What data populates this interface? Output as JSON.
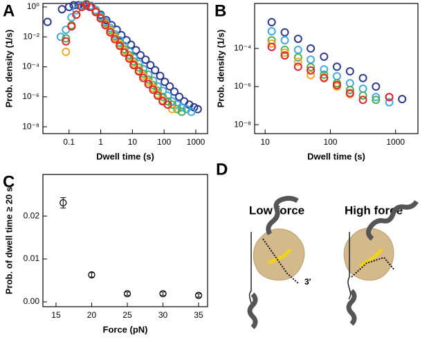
{
  "chart_data": [
    {
      "type": "scatter",
      "label": "A",
      "x_label": "Dwell time (s)",
      "y_label": "Prob. density (1/s)",
      "log_x": true,
      "log_y": true,
      "xlim": [
        0.015,
        2350
      ],
      "ylim": [
        3.5e-09,
        1.7
      ],
      "xticks": [
        0.1,
        1,
        10,
        100,
        1000
      ],
      "yticks": [
        {
          "value": 1e-08,
          "label": "10⁻⁸"
        },
        {
          "value": 1e-06,
          "label": "10⁻⁶"
        },
        {
          "value": 0.0001,
          "label": "10⁻⁴"
        },
        {
          "value": 0.01,
          "label": "10⁻²"
        },
        {
          "value": 1,
          "label": "10⁰"
        }
      ],
      "series": [
        {
          "color": "#2b3990",
          "x": [
            0.021,
            0.06,
            0.1,
            0.14,
            0.2,
            0.3,
            0.45,
            0.7,
            1,
            1.5,
            2.2,
            3.2,
            4.5,
            6.5,
            9,
            13,
            18,
            26,
            37,
            52,
            75,
            105,
            150,
            210,
            300,
            430,
            620,
            880,
            1150
          ],
          "values": [
            0.1,
            0.7,
            1,
            1.3,
            1.3,
            1.2,
            1,
            0.6,
            0.3,
            0.13,
            0.06,
            0.03,
            0.013,
            0.006,
            0.003,
            0.0013,
            0.0006,
            0.0003,
            0.00013,
            6e-05,
            2.5e-05,
            1e-05,
            5e-06,
            2.2e-06,
            1e-06,
            5e-07,
            3e-07,
            2e-07,
            1.5e-07
          ]
        },
        {
          "color": "#3fa9e0",
          "x": [
            0.055,
            0.08,
            0.12,
            0.17,
            0.25,
            0.35,
            0.5,
            0.7,
            1,
            1.4,
            2,
            2.8,
            4,
            5.6,
            8,
            11,
            16,
            22,
            32,
            45,
            63,
            90,
            130,
            180,
            260,
            360,
            510,
            720
          ],
          "values": [
            0.01,
            0.03,
            0.2,
            0.6,
            1.3,
            1.6,
            1.2,
            0.6,
            0.25,
            0.1,
            0.04,
            0.015,
            0.006,
            0.0025,
            0.001,
            0.0004,
            0.00016,
            7e-05,
            3e-05,
            1.2e-05,
            5e-06,
            2.5e-06,
            1.2e-06,
            5e-07,
            3e-07,
            2e-07,
            1.5e-07,
            1e-07
          ]
        },
        {
          "color": "#4caf50",
          "x": [
            0.08,
            0.12,
            0.17,
            0.25,
            0.35,
            0.5,
            0.7,
            1,
            1.4,
            2,
            2.8,
            4,
            5.6,
            8,
            11,
            16,
            22,
            32,
            45,
            63,
            90,
            130,
            180,
            260,
            360
          ],
          "values": [
            0.008,
            0.06,
            0.3,
            1,
            1.5,
            1,
            0.5,
            0.2,
            0.08,
            0.03,
            0.011,
            0.004,
            0.0015,
            0.0006,
            0.00023,
            9e-05,
            3.5e-05,
            1.4e-05,
            6e-06,
            2.5e-06,
            1e-06,
            5e-07,
            3e-07,
            1.5e-07,
            1e-07
          ]
        },
        {
          "color": "#f7a823",
          "x": [
            0.08,
            0.12,
            0.17,
            0.25,
            0.35,
            0.5,
            0.7,
            1,
            1.4,
            2,
            2.8,
            4,
            5.6,
            8,
            11,
            16,
            22,
            32,
            45,
            63,
            90,
            130,
            180
          ],
          "values": [
            0.001,
            0.05,
            0.3,
            1,
            1.4,
            1,
            0.45,
            0.18,
            0.07,
            0.025,
            0.009,
            0.003,
            0.0012,
            0.00045,
            0.00017,
            6e-05,
            2.5e-05,
            1e-05,
            4e-06,
            1.5e-06,
            6e-07,
            3e-07,
            1.5e-07
          ]
        },
        {
          "color": "#e0242b",
          "x": [
            0.08,
            0.12,
            0.17,
            0.25,
            0.35,
            0.5,
            0.7,
            1,
            1.4,
            2,
            2.8,
            4,
            5.6,
            8,
            11,
            16,
            22,
            32,
            45,
            63,
            90,
            130
          ],
          "values": [
            0.005,
            0.05,
            0.3,
            1,
            1.4,
            1,
            0.45,
            0.17,
            0.06,
            0.02,
            0.007,
            0.0025,
            0.0009,
            0.00035,
            0.00013,
            5e-05,
            1.8e-05,
            7e-06,
            3e-06,
            1.2e-06,
            5e-07,
            3e-07
          ]
        }
      ]
    },
    {
      "type": "scatter",
      "label": "B",
      "x_label": "Dwell time (s)",
      "y_label": "Prob. density (1/s)",
      "log_x": true,
      "log_y": true,
      "xlim": [
        6.9,
        2200
      ],
      "ylim": [
        3.4e-09,
        0.023
      ],
      "xticks": [
        10,
        100,
        1000
      ],
      "yticks": [
        {
          "value": 1e-08,
          "label": "10⁻⁸"
        },
        {
          "value": 1e-06,
          "label": "10⁻⁶"
        },
        {
          "value": 0.0001,
          "label": "10⁻⁴"
        }
      ],
      "series": [
        {
          "color": "#2b3990",
          "x": [
            12.6,
            20,
            32,
            50,
            80,
            126,
            200,
            316,
            500,
            800,
            1260
          ],
          "values": [
            0.0024,
            0.0007,
            0.00032,
            0.0001,
            3.7e-05,
            1.1e-05,
            6.3e-06,
            2.8e-06,
            1e-06,
            2.8e-07,
            2.2e-07
          ]
        },
        {
          "color": "#3fa9e0",
          "x": [
            12.6,
            20,
            32,
            50,
            80,
            126,
            200,
            316,
            500,
            800
          ],
          "values": [
            0.0008,
            0.00027,
            8.5e-05,
            2.6e-05,
            8e-06,
            3.5e-06,
            1.5e-06,
            7.7e-07,
            2.8e-07,
            1.5e-07
          ]
        },
        {
          "color": "#4caf50",
          "x": [
            12.6,
            20,
            32,
            50,
            80,
            126,
            200,
            316,
            500
          ],
          "values": [
            0.00027,
            8.5e-05,
            3.4e-05,
            1.05e-05,
            4.2e-06,
            1.5e-06,
            6.6e-07,
            3.4e-07,
            2e-07
          ]
        },
        {
          "color": "#f7a823",
          "x": [
            12.6,
            20,
            32,
            50,
            80,
            126,
            200
          ],
          "values": [
            0.00018,
            6e-05,
            2e-05,
            4e-06,
            3e-06,
            1e-06,
            4e-07
          ]
        },
        {
          "color": "#e0242b",
          "x": [
            12.6,
            20,
            32,
            50,
            80,
            126,
            200,
            316,
            800
          ],
          "values": [
            0.00012,
            4.3e-05,
            1.1e-05,
            7e-06,
            2.8e-06,
            1.2e-06,
            4.5e-07,
            2e-07,
            2.8e-07
          ]
        }
      ]
    },
    {
      "type": "errorbar",
      "label": "C",
      "x_label": "Force (pN)",
      "y_label": "Prob. of dwell time ≥ 20 s",
      "xlim": [
        13.16,
        36.26
      ],
      "ylim": [
        -0.00113,
        0.0297
      ],
      "xticks": [
        15,
        20,
        25,
        30,
        35
      ],
      "yticks": [
        {
          "value": 0,
          "label": "0.00"
        },
        0.01,
        0.02
      ],
      "series": [
        {
          "color": "#000000",
          "x": [
            16,
            20,
            25,
            30,
            35
          ],
          "values": [
            0.0231,
            0.0063,
            0.0019,
            0.0019,
            0.0015
          ],
          "errors": [
            0.0012,
            0.0005,
            0.0004,
            0.0004,
            0.0004
          ]
        }
      ]
    }
  ],
  "diagram": {
    "label": "D",
    "panels": [
      "Low force",
      "High force"
    ],
    "annotation": "3′"
  }
}
